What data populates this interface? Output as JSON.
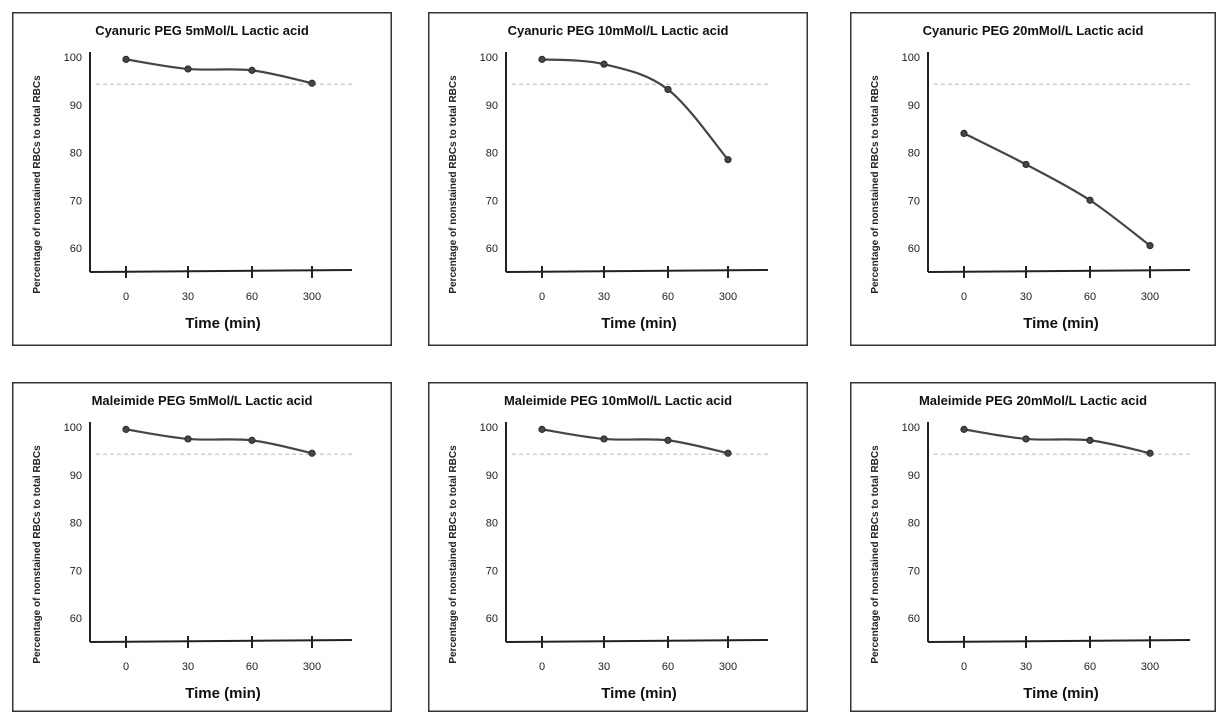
{
  "page": {
    "background": "#ffffff",
    "line_color": "#454545",
    "threshold_color": "#c8c8c8"
  },
  "chart_data": [
    {
      "type": "line",
      "title": "Cyanuric PEG 5mMol/L Lactic acid",
      "xlabel": "Time (min)",
      "ylabel": "Percentage of nonstained RBCs to total RBCs",
      "categories": [
        "0",
        "30",
        "60",
        "300"
      ],
      "values": [
        99.5,
        97.5,
        97.2,
        94.5
      ],
      "yticks": [
        "100",
        "90",
        "80",
        "70",
        "60"
      ],
      "ylim": [
        55,
        100
      ],
      "reference_line": 94.3,
      "grid": false
    },
    {
      "type": "line",
      "title": "Cyanuric PEG 10mMol/L Lactic acid",
      "xlabel": "Time (min)",
      "ylabel": "Percentage of nonstained RBCs to total RBCs",
      "categories": [
        "0",
        "30",
        "60",
        "300"
      ],
      "values": [
        99.5,
        98.5,
        93.2,
        78.5
      ],
      "yticks": [
        "100",
        "90",
        "80",
        "70",
        "60"
      ],
      "ylim": [
        55,
        100
      ],
      "reference_line": 94.3,
      "grid": false
    },
    {
      "type": "line",
      "title": "Cyanuric PEG 20mMol/L Lactic acid",
      "xlabel": "Time (min)",
      "ylabel": "Percentage of nonstained RBCs to total RBCs",
      "categories": [
        "0",
        "30",
        "60",
        "300"
      ],
      "values": [
        84.0,
        77.5,
        70.0,
        60.5
      ],
      "yticks": [
        "100",
        "90",
        "80",
        "70",
        "60"
      ],
      "ylim": [
        55,
        100
      ],
      "reference_line": 94.3,
      "grid": false
    },
    {
      "type": "line",
      "title": "Maleimide PEG 5mMol/L Lactic acid",
      "xlabel": "Time (min)",
      "ylabel": "Percentage of nonstained RBCs to total RBCs",
      "categories": [
        "0",
        "30",
        "60",
        "300"
      ],
      "values": [
        99.5,
        97.5,
        97.2,
        94.5
      ],
      "yticks": [
        "100",
        "90",
        "80",
        "70",
        "60"
      ],
      "ylim": [
        55,
        100
      ],
      "reference_line": 94.3,
      "grid": false
    },
    {
      "type": "line",
      "title": "Maleimide PEG 10mMol/L Lactic acid",
      "xlabel": "Time (min)",
      "ylabel": "Percentage of nonstained RBCs to total RBCs",
      "categories": [
        "0",
        "30",
        "60",
        "300"
      ],
      "values": [
        99.5,
        97.5,
        97.2,
        94.5
      ],
      "yticks": [
        "100",
        "90",
        "80",
        "70",
        "60"
      ],
      "ylim": [
        55,
        100
      ],
      "reference_line": 94.3,
      "grid": false
    },
    {
      "type": "line",
      "title": "Maleimide PEG 20mMol/L Lactic acid",
      "xlabel": "Time (min)",
      "ylabel": "Percentage of nonstained RBCs to total RBCs",
      "categories": [
        "0",
        "30",
        "60",
        "300"
      ],
      "values": [
        99.5,
        97.5,
        97.2,
        94.5
      ],
      "yticks": [
        "100",
        "90",
        "80",
        "70",
        "60"
      ],
      "ylim": [
        55,
        100
      ],
      "reference_line": 94.3,
      "grid": false
    }
  ]
}
